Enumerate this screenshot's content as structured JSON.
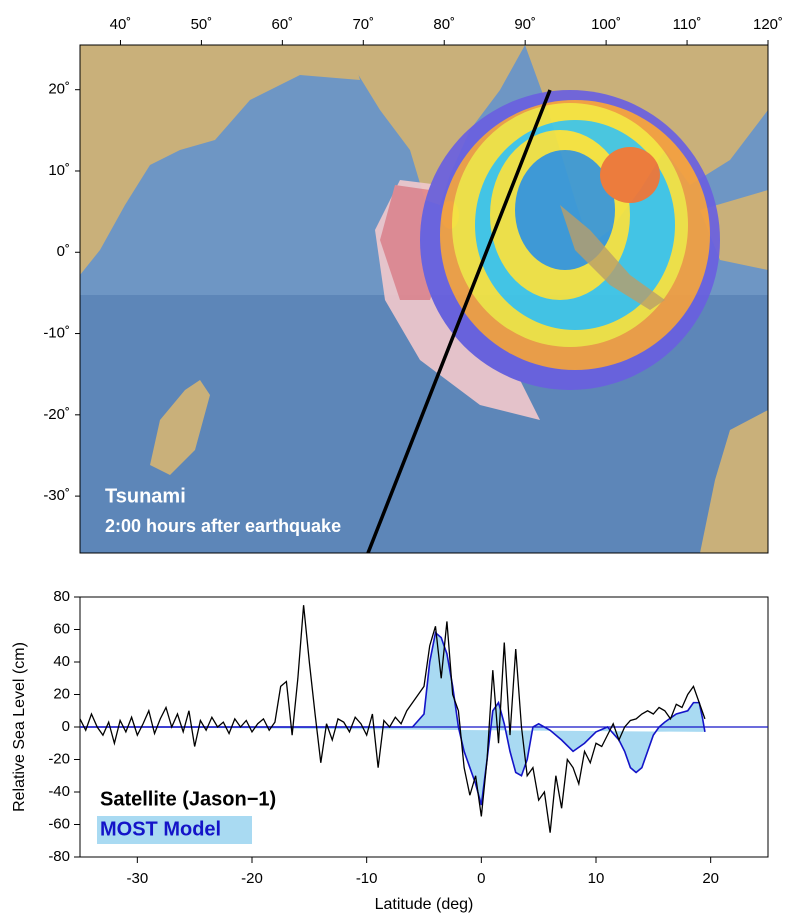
{
  "chart_data": [
    {
      "type": "map",
      "annotations": [
        "Tsunami",
        "2:00 hours after earthquake"
      ],
      "xlim": [
        35,
        120
      ],
      "ylim": [
        -37,
        25.5
      ],
      "xticks": [
        {
          "value": 40,
          "label": "40˚"
        },
        {
          "value": 50,
          "label": "50˚"
        },
        {
          "value": 60,
          "label": "60˚"
        },
        {
          "value": 70,
          "label": "70˚"
        },
        {
          "value": 80,
          "label": "80˚"
        },
        {
          "value": 90,
          "label": "90˚"
        },
        {
          "value": 100,
          "label": "100˚"
        },
        {
          "value": 110,
          "label": "110˚"
        },
        {
          "value": 120,
          "label": "120˚"
        }
      ],
      "yticks": [
        {
          "value": 20,
          "label": "20˚"
        },
        {
          "value": 10,
          "label": "10˚"
        },
        {
          "value": 0,
          "label": "0˚"
        },
        {
          "value": -10,
          "label": "-10˚"
        },
        {
          "value": -20,
          "label": "-20˚"
        },
        {
          "value": -30,
          "label": "-30˚"
        }
      ]
    },
    {
      "type": "line",
      "x_label": "Latitude (deg)",
      "y_label": "Relative Sea Level (cm)",
      "xlim": [
        -35,
        25
      ],
      "ylim": [
        -80,
        80
      ],
      "xticks": [
        -30,
        -20,
        -10,
        0,
        10,
        20
      ],
      "yticks": [
        -80,
        -60,
        -40,
        -20,
        0,
        20,
        40,
        60,
        80
      ],
      "series": [
        {
          "name": "Satellite (Jason−1)",
          "color": "#000000",
          "x": [
            -35,
            -34.5,
            -34,
            -33.5,
            -33,
            -32.5,
            -32,
            -31.5,
            -31,
            -30.5,
            -30,
            -29.5,
            -29,
            -28.5,
            -28,
            -27.5,
            -27,
            -26.5,
            -26,
            -25.5,
            -25,
            -24.5,
            -24,
            -23.5,
            -23,
            -22.5,
            -22,
            -21.5,
            -21,
            -20.5,
            -20,
            -19.5,
            -19,
            -18.5,
            -18,
            -17.5,
            -17,
            -16.5,
            -16,
            -15.5,
            -15,
            -14.5,
            -14,
            -13.5,
            -13,
            -12.5,
            -12,
            -11.5,
            -11,
            -10.5,
            -10,
            -9.5,
            -9,
            -8.5,
            -8,
            -7.5,
            -7,
            -6.5,
            -6,
            -5.5,
            -5,
            -4.5,
            -4,
            -3.5,
            -3,
            -2.5,
            -2,
            -1.5,
            -1,
            -0.5,
            0,
            0.5,
            1,
            1.5,
            2,
            2.5,
            3,
            3.5,
            4,
            4.5,
            5,
            5.5,
            6,
            6.5,
            7,
            7.5,
            8,
            8.5,
            9,
            9.5,
            10,
            10.5,
            11,
            11.5,
            12,
            12.5,
            13,
            13.5,
            14,
            14.5,
            15,
            15.5,
            16,
            16.5,
            17,
            17.5,
            18,
            18.5,
            19,
            19.5
          ],
          "values": [
            5,
            -2,
            8,
            0,
            -5,
            3,
            -10,
            4,
            -3,
            6,
            -5,
            2,
            10,
            -4,
            5,
            12,
            0,
            8,
            -3,
            10,
            -12,
            4,
            -2,
            6,
            0,
            3,
            -4,
            5,
            0,
            4,
            -3,
            2,
            5,
            -2,
            3,
            25,
            28,
            -5,
            30,
            75,
            40,
            8,
            -22,
            2,
            -8,
            5,
            3,
            -3,
            6,
            2,
            -5,
            8,
            -25,
            4,
            0,
            6,
            2,
            10,
            15,
            20,
            25,
            50,
            62,
            30,
            65,
            20,
            10,
            -25,
            -42,
            -30,
            -55,
            -20,
            35,
            -10,
            52,
            -5,
            48,
            0,
            -30,
            -25,
            -45,
            -40,
            -65,
            -30,
            -50,
            -20,
            -25,
            -35,
            -15,
            -22,
            -10,
            -12,
            -5,
            2,
            -8,
            0,
            4,
            5,
            8,
            10,
            8,
            12,
            10,
            5,
            14,
            12,
            20,
            25,
            15,
            5
          ]
        },
        {
          "name": "MOST Model",
          "color": "#1414c8",
          "fill": "#a9daf2",
          "x": [
            -35,
            -6,
            -5,
            -4.5,
            -4,
            -3.5,
            -3,
            -2.5,
            -2,
            -1.5,
            -1,
            -0.5,
            0,
            0.5,
            1,
            1.5,
            2,
            2.5,
            3,
            3.5,
            4,
            4.5,
            5,
            6,
            7,
            8,
            9,
            10,
            11,
            12,
            12.5,
            13,
            13.5,
            14,
            14.5,
            15,
            15.5,
            16,
            17,
            18,
            18.5,
            19,
            19.3,
            19.5
          ],
          "values": [
            0,
            0,
            8,
            40,
            58,
            55,
            45,
            25,
            0,
            -15,
            -25,
            -35,
            -48,
            -20,
            10,
            15,
            2,
            -15,
            -28,
            -30,
            -20,
            0,
            2,
            -2,
            -8,
            -15,
            -10,
            -3,
            0,
            -8,
            -15,
            -25,
            -28,
            -25,
            -15,
            -5,
            0,
            3,
            8,
            10,
            15,
            15,
            5,
            -3
          ]
        }
      ]
    }
  ]
}
